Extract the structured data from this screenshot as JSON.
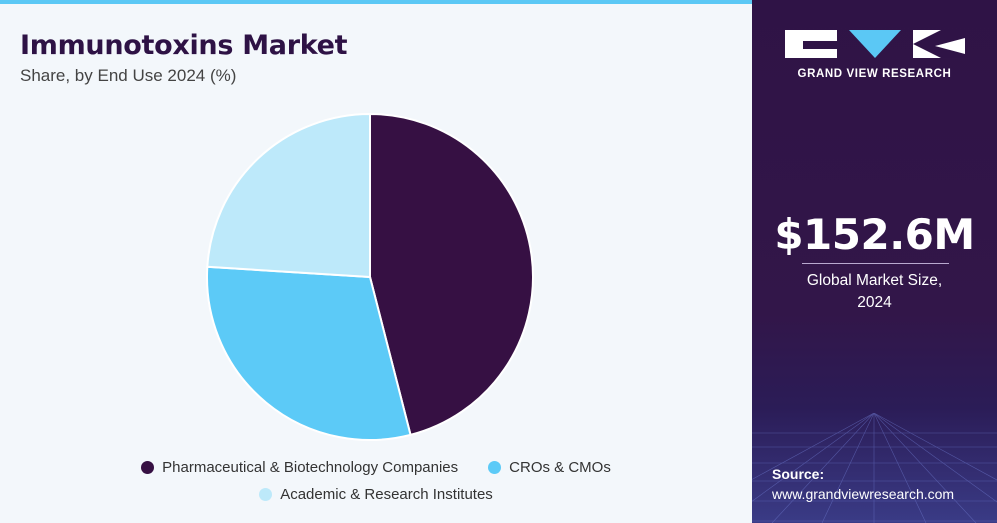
{
  "header": {
    "title": "Immunotoxins Market",
    "subtitle": "Share, by End Use 2024 (%)"
  },
  "chart_data": {
    "type": "pie",
    "title": "Immunotoxins Market",
    "subtitle": "Share, by End Use 2024 (%)",
    "legend_position": "bottom",
    "slices": [
      {
        "label": "Pharmaceutical & Biotechnology Companies",
        "value": 46,
        "color": "#361043"
      },
      {
        "label": "CROs & CMOs",
        "value": 30,
        "color": "#5ccaf7"
      },
      {
        "label": "Academic & Research Institutes",
        "value": 24,
        "color": "#bde9fa"
      }
    ]
  },
  "sidebar": {
    "brand": "GRAND VIEW RESEARCH",
    "market_size_value": "$152.6M",
    "market_size_caption_line1": "Global Market Size,",
    "market_size_caption_line2": "2024",
    "source_label": "Source:",
    "source_url": "www.grandviewresearch.com"
  },
  "colors": {
    "title": "#2e1245",
    "accent_bar": "#5bc8f5",
    "sidebar_bg": "#2f1346"
  }
}
